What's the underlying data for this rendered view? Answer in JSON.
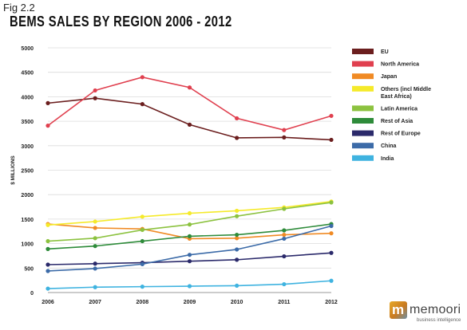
{
  "figure": {
    "label": "Fig 2.2",
    "title": "BEMS SALES BY REGION 2006 - 2012"
  },
  "logo": {
    "text": "memoori",
    "subtext": "business intelligence"
  },
  "chart_data": {
    "type": "line",
    "title": "BEMS SALES BY REGION 2006 - 2012",
    "xlabel": "",
    "ylabel": "$ MILLIONS",
    "x": [
      "2006",
      "2007",
      "2008",
      "2009",
      "2010",
      "2011",
      "2012"
    ],
    "ylim": [
      0,
      5000
    ],
    "yticks": [
      0,
      500,
      1000,
      1500,
      2000,
      2500,
      3000,
      3500,
      4000,
      4500,
      5000
    ],
    "grid": "horizontal",
    "legend_position": "right",
    "series": [
      {
        "name": "EU",
        "color": "#6b1e1e",
        "values": [
          3870,
          3970,
          3850,
          3430,
          3160,
          3170,
          3120
        ]
      },
      {
        "name": "North America",
        "color": "#e0404f",
        "values": [
          3410,
          4130,
          4400,
          4190,
          3560,
          3320,
          3610
        ]
      },
      {
        "name": "Japan",
        "color": "#f08a24",
        "values": [
          1400,
          1320,
          1300,
          1100,
          1110,
          1180,
          1210
        ]
      },
      {
        "name": "Others (incl Middle East Africa)",
        "color": "#f5ea2a",
        "values": [
          1380,
          1450,
          1550,
          1620,
          1670,
          1740,
          1860
        ]
      },
      {
        "name": "Latin America",
        "color": "#8cc23f",
        "values": [
          1050,
          1110,
          1280,
          1390,
          1560,
          1710,
          1840
        ]
      },
      {
        "name": "Rest of Asia",
        "color": "#2e8b3a",
        "values": [
          890,
          950,
          1050,
          1150,
          1180,
          1270,
          1400
        ]
      },
      {
        "name": "Rest of Europe",
        "color": "#2b2a6b",
        "values": [
          570,
          590,
          610,
          640,
          670,
          740,
          810
        ]
      },
      {
        "name": "China",
        "color": "#3c6ba8",
        "values": [
          440,
          490,
          580,
          770,
          880,
          1100,
          1360
        ]
      },
      {
        "name": "India",
        "color": "#3fb3e0",
        "values": [
          80,
          110,
          120,
          130,
          140,
          170,
          240
        ]
      }
    ]
  }
}
